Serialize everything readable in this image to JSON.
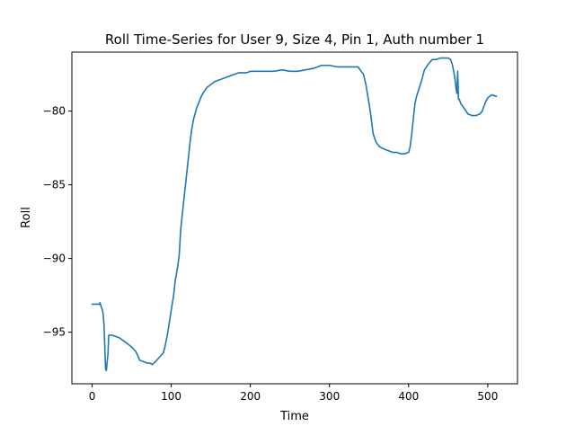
{
  "chart_data": {
    "type": "line",
    "title": "Roll Time-Series for User 9, Size 4, Pin 1, Auth number 1",
    "xlabel": "Time",
    "ylabel": "Roll",
    "xlim": [
      -25.6,
      537.6
    ],
    "ylim": [
      -98.5,
      -76.0
    ],
    "xticks": [
      0,
      100,
      200,
      300,
      400,
      500
    ],
    "yticks": [
      -95,
      -90,
      -85,
      -80
    ],
    "xtick_labels": [
      "0",
      "100",
      "200",
      "300",
      "400",
      "500"
    ],
    "ytick_labels": [
      "−95",
      "−90",
      "−85",
      "−80"
    ],
    "grid": false,
    "series": [
      {
        "color": "#1f77b4",
        "x": [
          0,
          5,
          9,
          10,
          11,
          13,
          14,
          15,
          16,
          17,
          18,
          19,
          20,
          21,
          22,
          23,
          25,
          30,
          35,
          40,
          45,
          50,
          55,
          57,
          60,
          65,
          70,
          73,
          76,
          80,
          85,
          90,
          92,
          95,
          98,
          100,
          103,
          105,
          108,
          110,
          112,
          115,
          118,
          120,
          122,
          124,
          126,
          128,
          130,
          132,
          135,
          138,
          140,
          145,
          150,
          155,
          160,
          165,
          170,
          175,
          180,
          185,
          190,
          195,
          200,
          210,
          220,
          230,
          240,
          250,
          260,
          270,
          280,
          285,
          290,
          293,
          300,
          310,
          320,
          328,
          332,
          336,
          340,
          343,
          346,
          350,
          352,
          355,
          358,
          360,
          363,
          366,
          370,
          375,
          380,
          385,
          390,
          395,
          400,
          402,
          404,
          406,
          408,
          410,
          413,
          416,
          420,
          425,
          430,
          435,
          440,
          445,
          450,
          453,
          455,
          457,
          459,
          460,
          461,
          462,
          463,
          464,
          466,
          470,
          475,
          480,
          485,
          490,
          493,
          495,
          498,
          500,
          505,
          511
        ],
        "y": [
          -93.1,
          -93.1,
          -93.1,
          -93.0,
          -93.2,
          -93.5,
          -93.8,
          -94.5,
          -96.0,
          -97.5,
          -97.6,
          -97.0,
          -96.5,
          -95.2,
          -95.2,
          -95.2,
          -95.2,
          -95.3,
          -95.4,
          -95.6,
          -95.8,
          -96.0,
          -96.3,
          -96.5,
          -96.9,
          -97.0,
          -97.1,
          -97.1,
          -97.2,
          -97.0,
          -96.7,
          -96.4,
          -96.0,
          -95.2,
          -94.2,
          -93.5,
          -92.5,
          -91.5,
          -90.6,
          -89.8,
          -88.0,
          -86.5,
          -85.0,
          -84.0,
          -83.0,
          -82.0,
          -81.2,
          -80.6,
          -80.2,
          -79.8,
          -79.4,
          -79.0,
          -78.8,
          -78.4,
          -78.2,
          -78.0,
          -77.9,
          -77.8,
          -77.7,
          -77.6,
          -77.5,
          -77.4,
          -77.4,
          -77.4,
          -77.3,
          -77.3,
          -77.3,
          -77.3,
          -77.2,
          -77.3,
          -77.3,
          -77.2,
          -77.1,
          -77.0,
          -76.9,
          -76.9,
          -76.9,
          -77.0,
          -77.0,
          -77.0,
          -77.0,
          -77.0,
          -77.3,
          -77.5,
          -78.2,
          -79.5,
          -80.2,
          -81.5,
          -82.0,
          -82.2,
          -82.4,
          -82.5,
          -82.6,
          -82.7,
          -82.8,
          -82.8,
          -82.9,
          -82.9,
          -82.8,
          -82.4,
          -81.5,
          -80.5,
          -79.5,
          -79.0,
          -78.5,
          -78.0,
          -77.2,
          -76.8,
          -76.5,
          -76.5,
          -76.4,
          -76.4,
          -76.4,
          -76.5,
          -76.8,
          -77.3,
          -78.0,
          -78.5,
          -78.8,
          -77.3,
          -79.2,
          -79.2,
          -79.5,
          -79.8,
          -80.2,
          -80.3,
          -80.3,
          -80.2,
          -80.0,
          -79.7,
          -79.3,
          -79.1,
          -78.9,
          -79.0
        ]
      }
    ]
  }
}
